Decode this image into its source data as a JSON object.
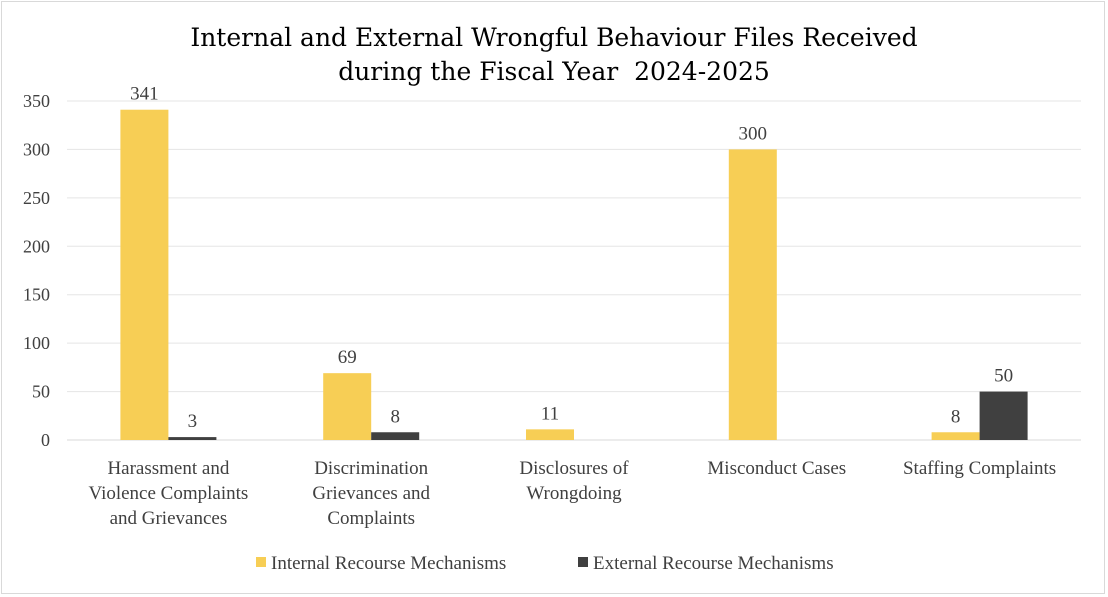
{
  "chart_data": {
    "type": "bar",
    "title": "Internal and External Wrongful Behaviour Files Received",
    "subtitle": "during the Fiscal Year  2024-2025",
    "categories": [
      [
        "Harassment and",
        "Violence Complaints",
        "and Grievances"
      ],
      [
        "Discrimination",
        "Grievances and",
        "Complaints"
      ],
      [
        "Disclosures of",
        "Wrongdoing"
      ],
      [
        "Misconduct Cases"
      ],
      [
        "Staffing Complaints"
      ]
    ],
    "series": [
      {
        "name": "Internal Recourse Mechanisms",
        "color": "#F7CE55",
        "values": [
          341,
          69,
          11,
          300,
          8
        ]
      },
      {
        "name": "External Recourse Mechanisms",
        "color": "#404040",
        "values": [
          3,
          8,
          null,
          null,
          50
        ]
      }
    ],
    "ylim": [
      0,
      350
    ],
    "yticks": [
      0,
      50,
      100,
      150,
      200,
      250,
      300,
      350
    ],
    "grid": true,
    "legend": "bottom"
  }
}
